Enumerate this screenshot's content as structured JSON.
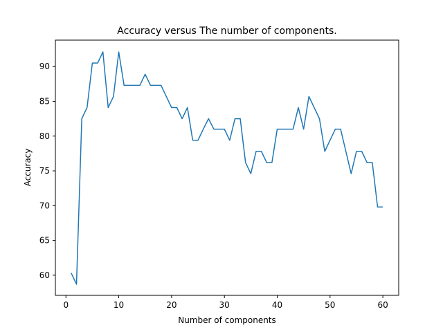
{
  "chart_data": {
    "type": "line",
    "title": "Accuracy versus The number of components.",
    "xlabel": "Number of components",
    "ylabel": "Accuracy",
    "xlim": [
      -2,
      63
    ],
    "ylim": [
      57.1,
      93.8
    ],
    "xticks": [
      0,
      10,
      20,
      30,
      40,
      50,
      60
    ],
    "yticks": [
      60,
      65,
      70,
      75,
      80,
      85,
      90
    ],
    "grid": false,
    "legend": "none",
    "series": [
      {
        "color": "#1f77b4",
        "x": [
          1,
          2,
          3,
          4,
          5,
          6,
          7,
          8,
          9,
          10,
          11,
          12,
          13,
          14,
          15,
          16,
          17,
          18,
          19,
          20,
          21,
          22,
          23,
          24,
          25,
          26,
          27,
          28,
          29,
          30,
          31,
          32,
          33,
          34,
          35,
          36,
          37,
          38,
          39,
          40,
          41,
          42,
          43,
          44,
          45,
          46,
          47,
          48,
          49,
          50,
          51,
          52,
          53,
          54,
          55,
          56,
          57,
          58,
          59,
          60
        ],
        "y": [
          60.3,
          58.7,
          82.5,
          84.1,
          90.5,
          90.5,
          92.1,
          84.1,
          85.7,
          92.1,
          87.3,
          87.3,
          87.3,
          87.3,
          88.9,
          87.3,
          87.3,
          87.3,
          85.7,
          84.1,
          84.1,
          82.5,
          84.1,
          79.4,
          79.4,
          81.0,
          82.5,
          81.0,
          81.0,
          81.0,
          79.4,
          82.5,
          82.5,
          76.2,
          74.6,
          77.8,
          77.8,
          76.2,
          76.2,
          81.0,
          81.0,
          81.0,
          81.0,
          84.1,
          81.0,
          85.7,
          84.1,
          82.5,
          77.8,
          79.4,
          81.0,
          81.0,
          77.8,
          74.6,
          77.8,
          77.8,
          76.2,
          76.2,
          69.8,
          69.8
        ]
      }
    ]
  }
}
